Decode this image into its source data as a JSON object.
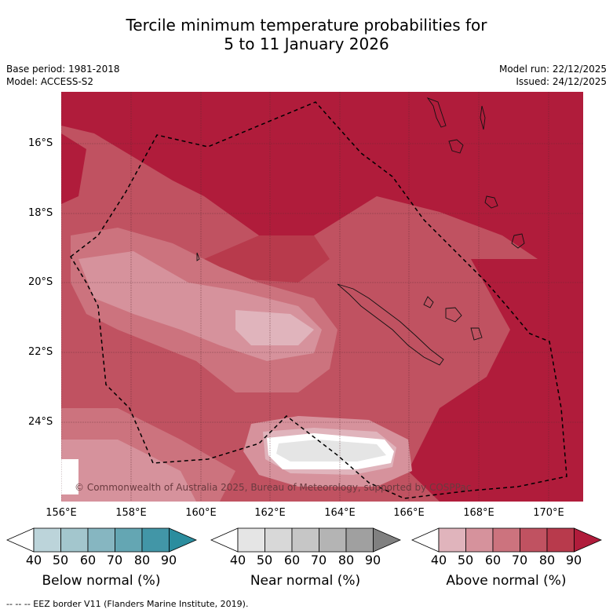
{
  "title": {
    "line1": "Tercile minimum temperature probabilities for",
    "line2": "5 to 11 January 2026"
  },
  "meta_left": {
    "base_period": "Base period: 1981-2018",
    "model": "Model: ACCESS-S2"
  },
  "meta_right": {
    "model_run": "Model run: 22/12/2025",
    "issued": "Issued: 24/12/2025"
  },
  "lat_labels": [
    "16°S",
    "18°S",
    "20°S",
    "22°S",
    "24°S"
  ],
  "lon_labels": [
    "156°E",
    "158°E",
    "160°E",
    "162°E",
    "164°E",
    "166°E",
    "168°E",
    "170°E"
  ],
  "copyright": "© Commonwealth of Australia 2025, Bureau of Meteorology, supported by COSPPac",
  "colorbars": [
    {
      "label": "Below normal (%)",
      "ticks": [
        "40",
        "50",
        "60",
        "70",
        "80",
        "90"
      ],
      "colors": [
        "#ffffff",
        "#bcd4da",
        "#a3c6cd",
        "#86b6c1",
        "#64a6b3",
        "#4296a7",
        "#2b8d9e"
      ]
    },
    {
      "label": "Near normal (%)",
      "ticks": [
        "40",
        "50",
        "60",
        "70",
        "80",
        "90"
      ],
      "colors": [
        "#ffffff",
        "#e5e5e5",
        "#d8d8d8",
        "#c6c6c6",
        "#b4b4b4",
        "#a0a0a0",
        "#808080"
      ]
    },
    {
      "label": "Above normal (%)",
      "ticks": [
        "40",
        "50",
        "60",
        "70",
        "80",
        "90"
      ],
      "colors": [
        "#ffffff",
        "#e0b4bc",
        "#d6929c",
        "#cc737e",
        "#c05261",
        "#b83a4c",
        "#b01c3b"
      ]
    }
  ],
  "footer": "--  --  -- EEZ border V11 (Flanders Marine Institute, 2019)."
}
